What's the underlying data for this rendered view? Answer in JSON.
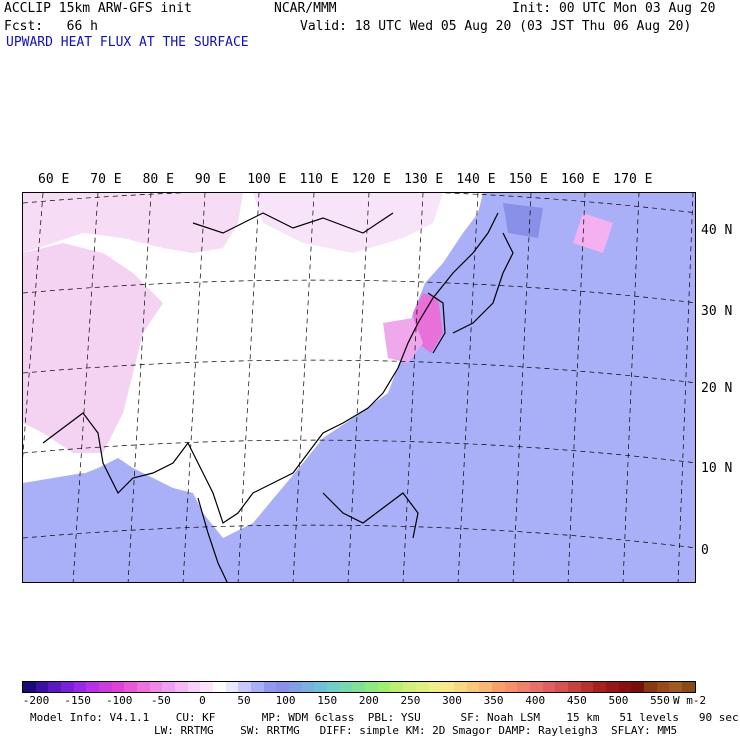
{
  "header": {
    "model": "ACCLIP 15km ARW-GFS init",
    "center": "NCAR/MMM",
    "init": "Init: 00 UTC Mon 03 Aug 20",
    "fcst": "Fcst:   66 h",
    "valid": "Valid: 18 UTC Wed 05 Aug 20 (03 JST Thu 06 Aug 20)",
    "field": "UPWARD HEAT FLUX AT THE SURFACE"
  },
  "map": {
    "lon_labels": [
      "60 E",
      "70 E",
      "80 E",
      "90 E",
      "100 E",
      "110 E",
      "120 E",
      "130 E",
      "140 E",
      "150 E",
      "160 E",
      "170 E"
    ],
    "lat_labels": [
      "40 N",
      "30 N",
      "20 N",
      "10 N",
      "0"
    ]
  },
  "colorbar": {
    "ticks": [
      "-200",
      "-150",
      "-100",
      "-50",
      "0",
      "50",
      "100",
      "150",
      "200",
      "250",
      "300",
      "350",
      "400",
      "450",
      "500",
      "550"
    ],
    "units": "W m-2",
    "colors": [
      "#1a0a7a",
      "#3a10a0",
      "#5a18c0",
      "#7a20d8",
      "#9a28e8",
      "#b830e8",
      "#d038e0",
      "#e040d8",
      "#e858d8",
      "#f070e0",
      "#f088e8",
      "#f0a0f0",
      "#f4b8f4",
      "#f8d0f8",
      "#fce4fc",
      "#ffffff",
      "#e8e8ff",
      "#c8c8ff",
      "#aab0f8",
      "#9098f0",
      "#8890e8",
      "#80a0e8",
      "#78b0e0",
      "#70c0d8",
      "#70d0c8",
      "#78d8b0",
      "#80e098",
      "#90e880",
      "#a0f070",
      "#b8f070",
      "#d0f078",
      "#e0f080",
      "#f0f088",
      "#f8e888",
      "#f8d880",
      "#f8c878",
      "#f8b870",
      "#f8a068",
      "#f89068",
      "#f08068",
      "#e87068",
      "#e06060",
      "#d85050",
      "#c84040",
      "#b83030",
      "#a82020",
      "#981818",
      "#881010",
      "#781008",
      "#8a3a10",
      "#9a4a18",
      "#a05a20",
      "#8a4a18"
    ]
  },
  "model_info": {
    "line1": "Model Info: V4.1.1    CU: KF       MP: WDM 6class  PBL: YSU      SF: Noah LSM    15 km   51 levels   90 sec",
    "line2": "LW: RRTMG    SW: RRTMG   DIFF: simple KM: 2D Smagor DAMP: Rayleigh3  SFLAY: MM5"
  }
}
